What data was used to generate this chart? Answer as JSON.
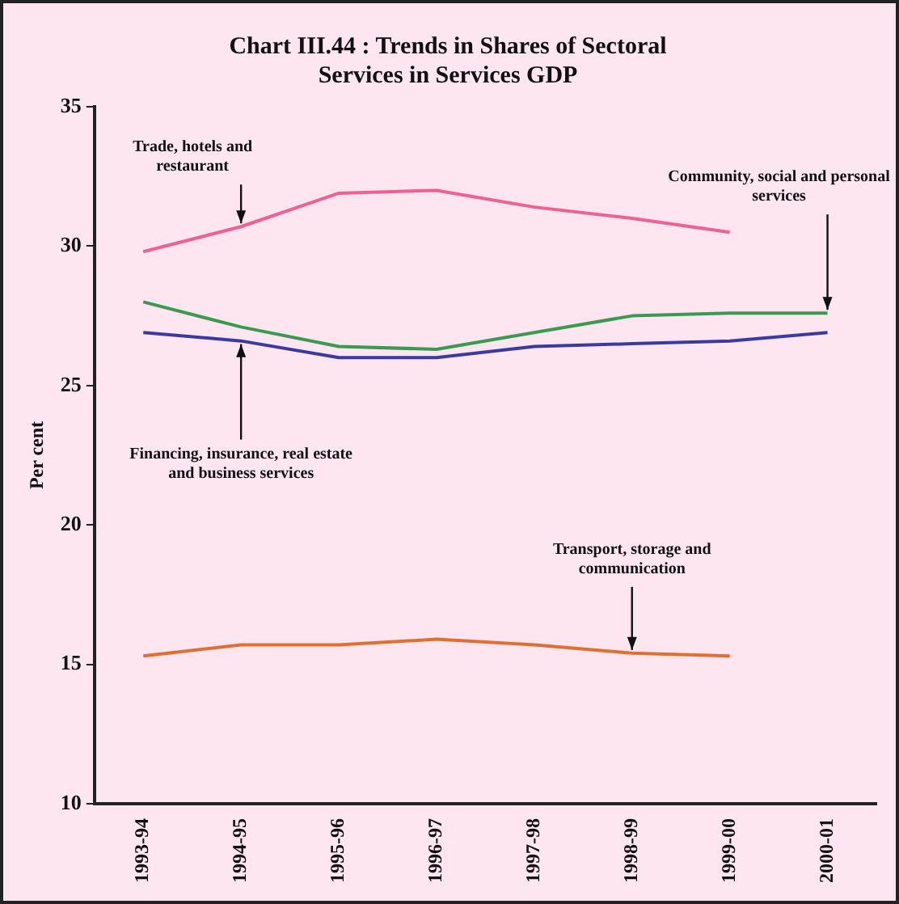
{
  "chart_data": {
    "type": "line",
    "title": "Chart III.44 : Trends in Shares of Sectoral Services in Services GDP",
    "ylabel": "Per cent",
    "categories": [
      "1993-94",
      "1994-95",
      "1995-96",
      "1996-97",
      "1997-98",
      "1998-99",
      "1999-00",
      "2000-01"
    ],
    "ylim": [
      10,
      35
    ],
    "yticks": [
      10,
      15,
      20,
      25,
      30,
      35
    ],
    "grid": false,
    "legend": false,
    "marker": "none",
    "line_style": "solid",
    "series": [
      {
        "color": "#f06090",
        "values": [
          29.8,
          30.7,
          31.9,
          32.0,
          31.4,
          31.0,
          30.5,
          null
        ]
      },
      {
        "color": "#3a9a50",
        "values": [
          28.0,
          27.1,
          26.4,
          26.3,
          26.9,
          27.5,
          27.6,
          27.6
        ]
      },
      {
        "color": "#3a3aa0",
        "values": [
          26.9,
          26.6,
          26.0,
          26.0,
          26.4,
          26.5,
          26.6,
          26.9
        ]
      },
      {
        "color": "#e07030",
        "values": [
          15.3,
          15.7,
          15.7,
          15.9,
          15.7,
          15.4,
          15.3,
          null
        ]
      }
    ],
    "annotations": [
      {
        "text": "Trade, hotels and restaurant",
        "x": "1994-95",
        "y": 30.7
      },
      {
        "text": "Community, social and personal services",
        "x": "2000-01",
        "y": 27.6
      },
      {
        "text": "Financing, insurance, real estate and business services",
        "x": "1994-95",
        "y": 26.6
      },
      {
        "text": "Transport, storage and communication",
        "x": "1998-99",
        "y": 15.4
      }
    ]
  }
}
